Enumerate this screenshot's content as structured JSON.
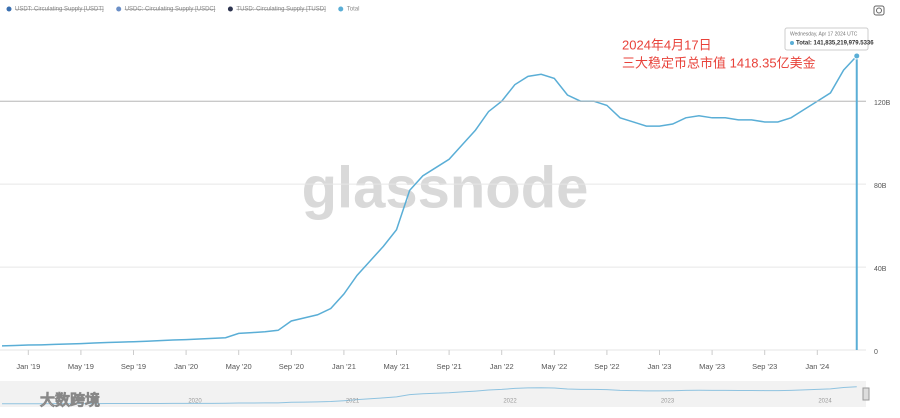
{
  "chart_data": {
    "type": "line",
    "legend": [
      {
        "name": "USDT: Circulating Supply [USDT]",
        "color": "#3a6fb0",
        "hidden": true
      },
      {
        "name": "USDC: Circulating Supply [USDC]",
        "color": "#6b8fc7",
        "hidden": true
      },
      {
        "name": "TUSD: Circulating Supply [TUSD]",
        "color": "#2e3550",
        "hidden": true
      }
    ],
    "watermark": "glassnode",
    "annotation": [
      "2024年4月17日",
      "三大稳定币总市值 1418.35亿美金"
    ],
    "tooltip": {
      "date": "Wednesday, Apr 17 2024 UTC",
      "text": "Total: 141,835,219,979.5336"
    },
    "navigator_labels": [
      "2020",
      "2021",
      "2022",
      "2023",
      "2024"
    ],
    "logo": "大数跨境",
    "x": [
      "2018-11",
      "2018-12",
      "2019-01",
      "2019-02",
      "2019-03",
      "2019-04",
      "2019-05",
      "2019-06",
      "2019-07",
      "2019-08",
      "2019-09",
      "2019-10",
      "2019-11",
      "2019-12",
      "2020-01",
      "2020-02",
      "2020-03",
      "2020-04",
      "2020-05",
      "2020-06",
      "2020-07",
      "2020-08",
      "2020-09",
      "2020-10",
      "2020-11",
      "2020-12",
      "2021-01",
      "2021-02",
      "2021-03",
      "2021-04",
      "2021-05",
      "2021-06",
      "2021-07",
      "2021-08",
      "2021-09",
      "2021-10",
      "2021-11",
      "2021-12",
      "2022-01",
      "2022-02",
      "2022-03",
      "2022-04",
      "2022-05",
      "2022-06",
      "2022-07",
      "2022-08",
      "2022-09",
      "2022-10",
      "2022-11",
      "2022-12",
      "2023-01",
      "2023-02",
      "2023-03",
      "2023-04",
      "2023-05",
      "2023-06",
      "2023-07",
      "2023-08",
      "2023-09",
      "2023-10",
      "2023-11",
      "2023-12",
      "2024-01",
      "2024-02",
      "2024-03",
      "2024-04"
    ],
    "series": [
      {
        "name": "Total",
        "color": "#5aaed6",
        "values": [
          2.0,
          2.2,
          2.4,
          2.5,
          2.7,
          2.9,
          3.1,
          3.4,
          3.6,
          3.8,
          4.0,
          4.2,
          4.5,
          4.8,
          5.0,
          5.3,
          5.6,
          5.9,
          8.0,
          8.4,
          8.8,
          9.5,
          14,
          15.5,
          17,
          20,
          27,
          36,
          43,
          50,
          58,
          77,
          84,
          88,
          92,
          99,
          106,
          115,
          120,
          128,
          132,
          133,
          131,
          123,
          120,
          120,
          118,
          112,
          110,
          108,
          108,
          109,
          112,
          113,
          112,
          112,
          111,
          111,
          110,
          110,
          112,
          116,
          120,
          124,
          135,
          141.835
        ]
      }
    ],
    "xticks": [
      {
        "value": "2019-01",
        "label": "Jan '19"
      },
      {
        "value": "2019-05",
        "label": "May '19"
      },
      {
        "value": "2019-09",
        "label": "Sep '19"
      },
      {
        "value": "2020-01",
        "label": "Jan '20"
      },
      {
        "value": "2020-05",
        "label": "May '20"
      },
      {
        "value": "2020-09",
        "label": "Sep '20"
      },
      {
        "value": "2021-01",
        "label": "Jan '21"
      },
      {
        "value": "2021-05",
        "label": "May '21"
      },
      {
        "value": "2021-09",
        "label": "Sep '21"
      },
      {
        "value": "2022-01",
        "label": "Jan '22"
      },
      {
        "value": "2022-05",
        "label": "May '22"
      },
      {
        "value": "2022-09",
        "label": "Sep '22"
      },
      {
        "value": "2023-01",
        "label": "Jan '23"
      },
      {
        "value": "2023-05",
        "label": "May '23"
      },
      {
        "value": "2023-09",
        "label": "Sep '23"
      },
      {
        "value": "2024-01",
        "label": "Jan '24"
      }
    ],
    "ylim": [
      0,
      164
    ],
    "yticks": [
      0,
      {
        "value": 40,
        "label": "40B"
      },
      {
        "value": 80,
        "label": "80B"
      },
      {
        "value": 120,
        "label": "120B"
      }
    ],
    "grid": true
  }
}
